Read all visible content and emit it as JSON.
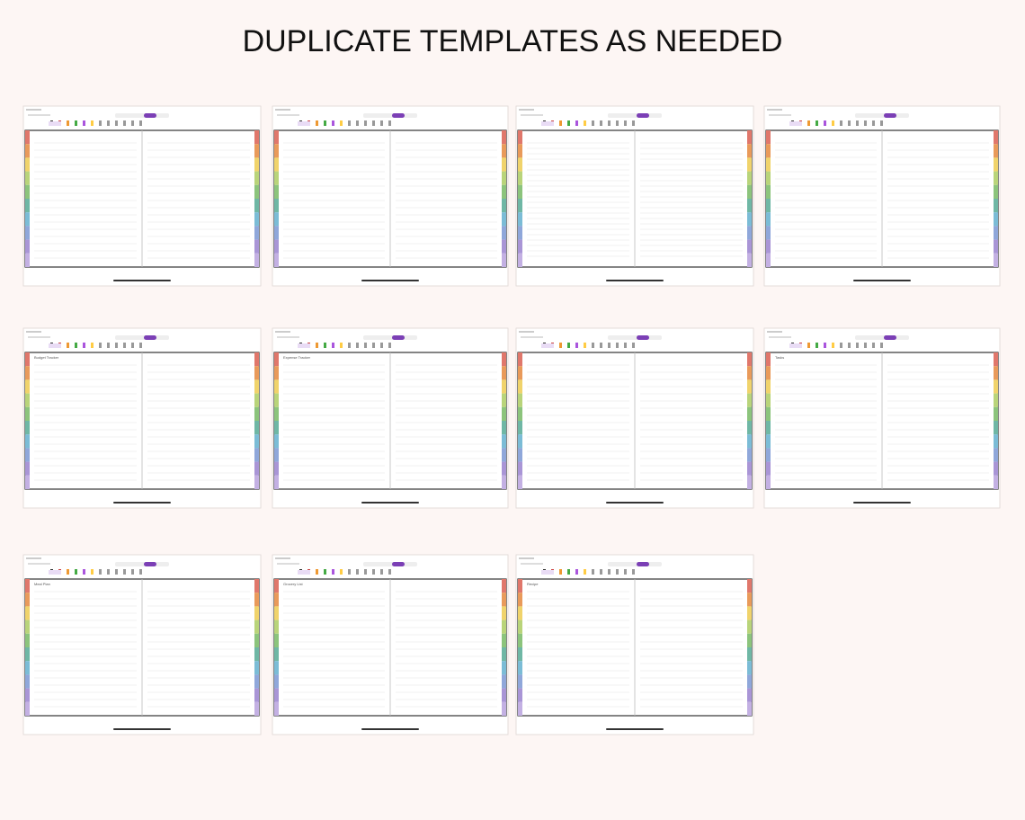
{
  "header": {
    "title": "DUPLICATE TEMPLATES AS NEEDED"
  },
  "templates": [
    {
      "title": "Budget Tracker"
    },
    {
      "title": "Expense Tracker"
    },
    {
      "title": "Tasks"
    },
    {
      "title": "Meal Plan"
    },
    {
      "title": "Grocery List"
    },
    {
      "title": "Recipe"
    }
  ]
}
